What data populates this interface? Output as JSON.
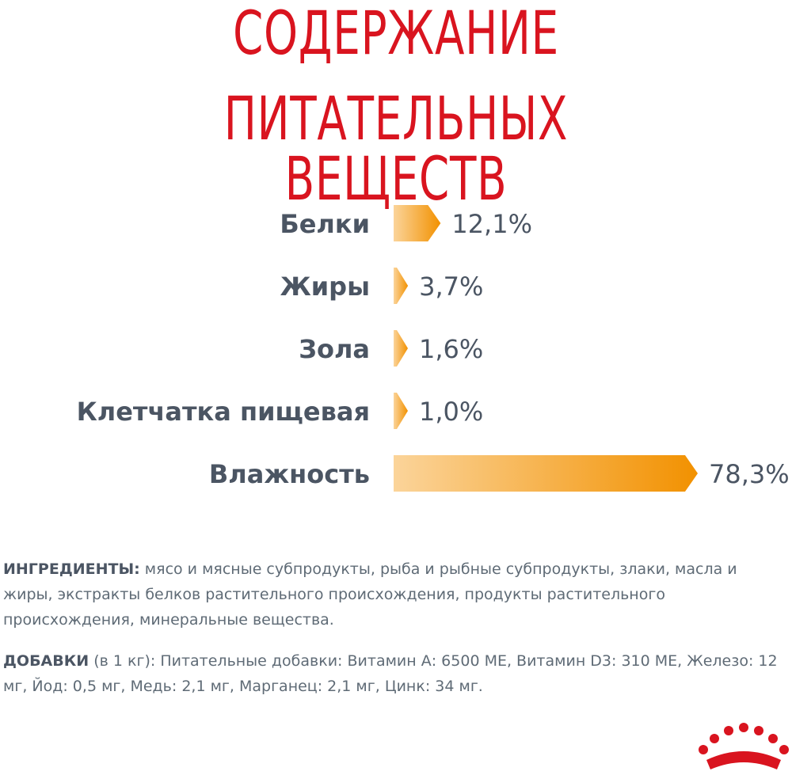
{
  "title_line1": "СОДЕРЖАНИЕ",
  "title_line2": "ПИТАТЕЛЬНЫХ ВЕЩЕСТВ",
  "chart_data": {
    "type": "bar",
    "orientation": "horizontal",
    "categories": [
      "Белки",
      "Жиры",
      "Зола",
      "Клетчатка пищевая",
      "Влажность"
    ],
    "values": [
      12.1,
      3.7,
      1.6,
      1.0,
      78.3
    ],
    "value_labels": [
      "12,1%",
      "3,7%",
      "1,6%",
      "1,0%",
      "78,3%"
    ],
    "unit": "%",
    "bar_color_start": "#fbd49a",
    "bar_color_end": "#f29100"
  },
  "ingredients": {
    "label": "ИНГРЕДИЕНТЫ:",
    "text": " мясо и мясные субпродукты, рыба и рыбные субпродукты, злаки, масла и жиры, экстракты белков растительного происхождения, продукты растительного происхождения, минеральные вещества."
  },
  "additives": {
    "label": "ДОБАВКИ",
    "text": " (в 1 кг): Питательные добавки: Витамин А: 6500 МЕ, Витамин D3: 310 МЕ, Железо: 12 мг, Йод: 0,5 мг, Медь: 2,1 мг, Марганец: 2,1 мг, Цинк: 34 мг."
  },
  "title_color": "#d9141f",
  "logo": "crown-logo"
}
